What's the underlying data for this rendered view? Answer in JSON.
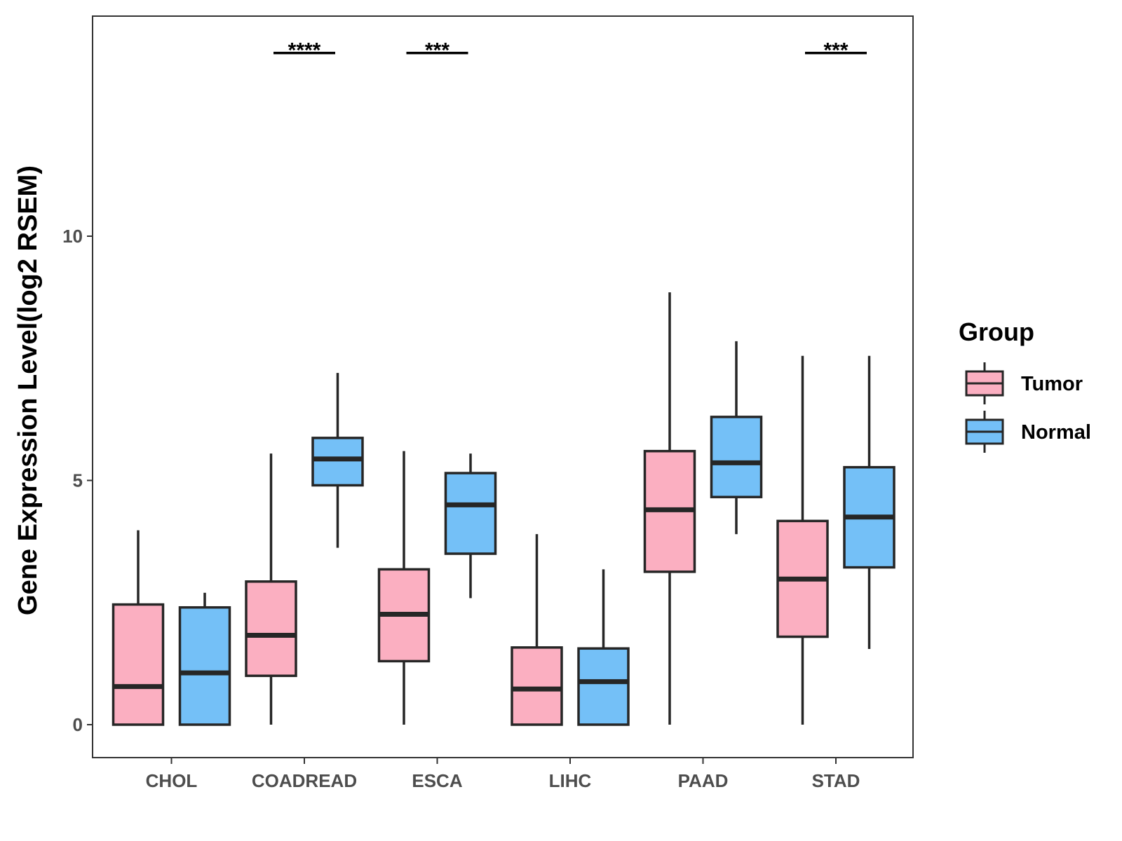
{
  "chart_data": {
    "type": "boxplot",
    "title": "",
    "xlabel": "",
    "ylabel": "Gene Expression Level(log2 RSEM)",
    "ylim": [
      -0.68,
      14.5
    ],
    "yticks": [
      0,
      5,
      10
    ],
    "grid": false,
    "legend": {
      "title": "Group",
      "position": "right",
      "entries": [
        {
          "name": "Tumor",
          "color": "#FBAFC1"
        },
        {
          "name": "Normal",
          "color": "#74C0F7"
        }
      ]
    },
    "categories": [
      "CHOL",
      "COADREAD",
      "ESCA",
      "LIHC",
      "PAAD",
      "STAD"
    ],
    "series": [
      {
        "name": "Tumor",
        "color": "#FBAFC1",
        "boxes": [
          {
            "min": 0,
            "q1": 0,
            "median": 0.78,
            "q3": 2.46,
            "max": 3.98
          },
          {
            "min": 0,
            "q1": 1.0,
            "median": 1.83,
            "q3": 2.93,
            "max": 5.55
          },
          {
            "min": 0,
            "q1": 1.3,
            "median": 2.26,
            "q3": 3.18,
            "max": 5.6
          },
          {
            "min": 0,
            "q1": 0,
            "median": 0.73,
            "q3": 1.58,
            "max": 3.9
          },
          {
            "min": 0,
            "q1": 3.13,
            "median": 4.4,
            "q3": 5.6,
            "max": 8.85
          },
          {
            "min": 0,
            "q1": 1.8,
            "median": 2.98,
            "q3": 4.17,
            "max": 7.55
          }
        ]
      },
      {
        "name": "Normal",
        "color": "#74C0F7",
        "boxes": [
          {
            "min": 0,
            "q1": 0,
            "median": 1.06,
            "q3": 2.4,
            "max": 2.7
          },
          {
            "min": 3.62,
            "q1": 4.9,
            "median": 5.44,
            "q3": 5.87,
            "max": 7.2
          },
          {
            "min": 2.59,
            "q1": 3.5,
            "median": 4.5,
            "q3": 5.15,
            "max": 5.55
          },
          {
            "min": 0,
            "q1": 0,
            "median": 0.88,
            "q3": 1.56,
            "max": 3.18
          },
          {
            "min": 3.9,
            "q1": 4.66,
            "median": 5.36,
            "q3": 6.3,
            "max": 7.85
          },
          {
            "min": 1.55,
            "q1": 3.22,
            "median": 4.25,
            "q3": 5.27,
            "max": 7.55
          }
        ]
      }
    ],
    "annotations": [
      {
        "category": "COADREAD",
        "label": "****",
        "y": 13.75
      },
      {
        "category": "ESCA",
        "label": "***",
        "y": 13.75
      },
      {
        "category": "STAD",
        "label": "***",
        "y": 13.75
      }
    ]
  }
}
